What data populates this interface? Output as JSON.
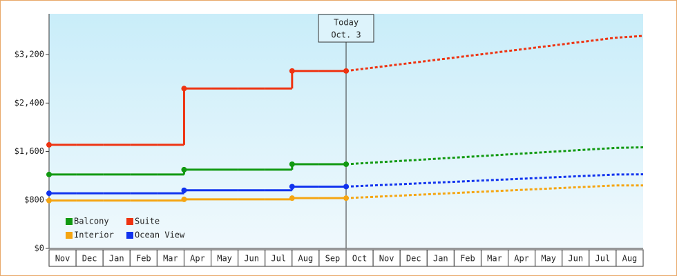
{
  "chart_data": {
    "type": "line",
    "categories": [
      "Nov",
      "Dec",
      "Jan",
      "Feb",
      "Mar",
      "Apr",
      "May",
      "Jun",
      "Jul",
      "Aug",
      "Sep",
      "Oct",
      "Nov",
      "Dec",
      "Jan",
      "Feb",
      "Mar",
      "Apr",
      "May",
      "Jun",
      "Jul",
      "Aug"
    ],
    "ylim": [
      0,
      3874
    ],
    "yticks": [
      {
        "value": 0,
        "label": "$0"
      },
      {
        "value": 800,
        "label": "$800"
      },
      {
        "value": 1600,
        "label": "$1,600"
      },
      {
        "value": 2400,
        "label": "$2,400"
      },
      {
        "value": 3200,
        "label": "$3,200"
      }
    ],
    "annotation": {
      "text": "Today",
      "date": "Oct. 3",
      "category": "Oct"
    },
    "legend": "bottom-left",
    "series": [
      {
        "name": "Balcony",
        "color": "#119911",
        "values": [
          1220,
          1220,
          1220,
          1220,
          1220,
          1300,
          1300,
          1300,
          1300,
          1390,
          1390,
          null,
          null,
          null,
          null,
          null,
          null,
          null,
          null,
          null,
          null,
          null
        ],
        "projection": [
          null,
          null,
          null,
          null,
          null,
          null,
          null,
          null,
          null,
          null,
          null,
          1417,
          1444,
          1471,
          1498,
          1525,
          1552,
          1579,
          1606,
          1633,
          1660,
          1669
        ]
      },
      {
        "name": "Suite",
        "color": "#ee3311",
        "values": [
          1710,
          1710,
          1710,
          1710,
          1710,
          2640,
          2640,
          2640,
          2640,
          2930,
          2930,
          null,
          null,
          null,
          null,
          null,
          null,
          null,
          null,
          null,
          null,
          null
        ],
        "projection": [
          null,
          null,
          null,
          null,
          null,
          null,
          null,
          null,
          null,
          null,
          null,
          2985,
          3040,
          3095,
          3150,
          3205,
          3260,
          3315,
          3370,
          3425,
          3480,
          3509
        ]
      },
      {
        "name": "Interior",
        "color": "#f5a511",
        "values": [
          790,
          790,
          790,
          790,
          790,
          810,
          810,
          810,
          810,
          830,
          830,
          null,
          null,
          null,
          null,
          null,
          null,
          null,
          null,
          null,
          null,
          null
        ],
        "projection": [
          null,
          null,
          null,
          null,
          null,
          null,
          null,
          null,
          null,
          null,
          null,
          851,
          872,
          893,
          914,
          935,
          956,
          977,
          998,
          1019,
          1040,
          1040
        ]
      },
      {
        "name": "Ocean View",
        "color": "#1133ee",
        "values": [
          910,
          910,
          910,
          910,
          910,
          960,
          960,
          960,
          960,
          1020,
          1020,
          null,
          null,
          null,
          null,
          null,
          null,
          null,
          null,
          null,
          null,
          null
        ],
        "projection": [
          null,
          null,
          null,
          null,
          null,
          null,
          null,
          null,
          null,
          null,
          null,
          1040,
          1060,
          1080,
          1100,
          1120,
          1140,
          1160,
          1180,
          1200,
          1220,
          1223
        ]
      }
    ]
  }
}
